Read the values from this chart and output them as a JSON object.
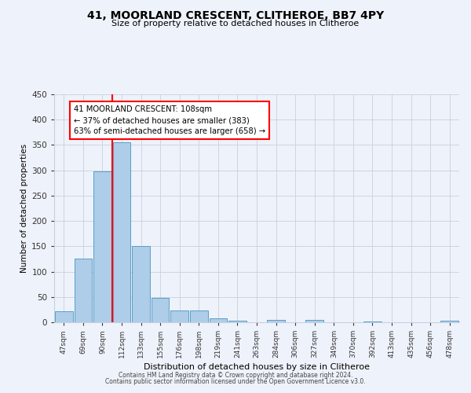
{
  "title": "41, MOORLAND CRESCENT, CLITHEROE, BB7 4PY",
  "subtitle": "Size of property relative to detached houses in Clitheroe",
  "xlabel": "Distribution of detached houses by size in Clitheroe",
  "ylabel": "Number of detached properties",
  "bin_labels": [
    "47sqm",
    "69sqm",
    "90sqm",
    "112sqm",
    "133sqm",
    "155sqm",
    "176sqm",
    "198sqm",
    "219sqm",
    "241sqm",
    "263sqm",
    "284sqm",
    "306sqm",
    "327sqm",
    "349sqm",
    "370sqm",
    "392sqm",
    "413sqm",
    "435sqm",
    "456sqm",
    "478sqm"
  ],
  "bin_values": [
    22,
    125,
    298,
    355,
    150,
    48,
    23,
    23,
    8,
    3,
    0,
    4,
    0,
    4,
    0,
    0,
    2,
    0,
    0,
    0,
    3
  ],
  "bar_color": "#aecde8",
  "bar_edge_color": "#5a9ec8",
  "ylim": [
    0,
    450
  ],
  "yticks": [
    0,
    50,
    100,
    150,
    200,
    250,
    300,
    350,
    400,
    450
  ],
  "annotation_title": "41 MOORLAND CRESCENT: 108sqm",
  "annotation_line1": "← 37% of detached houses are smaller (383)",
  "annotation_line2": "63% of semi-detached houses are larger (658) →",
  "footer_line1": "Contains HM Land Registry data © Crown copyright and database right 2024.",
  "footer_line2": "Contains public sector information licensed under the Open Government Licence v3.0.",
  "background_color": "#eef2fa",
  "grid_color": "#c8d0e0"
}
